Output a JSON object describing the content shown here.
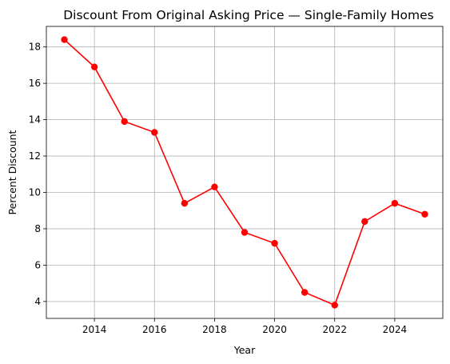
{
  "chart_data": {
    "type": "line",
    "title": "Discount From Original Asking Price — Single-Family Homes",
    "xlabel": "Year",
    "ylabel": "Percent Discount",
    "x": [
      2013,
      2014,
      2015,
      2016,
      2017,
      2018,
      2019,
      2020,
      2021,
      2022,
      2023,
      2024,
      2025
    ],
    "series": [
      {
        "values": [
          18.4,
          16.9,
          13.9,
          13.3,
          9.4,
          10.3,
          7.8,
          7.2,
          4.5,
          3.8,
          8.4,
          9.4,
          8.8
        ],
        "color": "#ff0000",
        "marker": "circle"
      }
    ],
    "xlim": [
      2012.4,
      2025.6
    ],
    "ylim": [
      3.07,
      19.13
    ],
    "xticks": [
      2014,
      2016,
      2018,
      2020,
      2022,
      2024
    ],
    "yticks": [
      4,
      6,
      8,
      10,
      12,
      14,
      16,
      18
    ],
    "grid": true
  }
}
